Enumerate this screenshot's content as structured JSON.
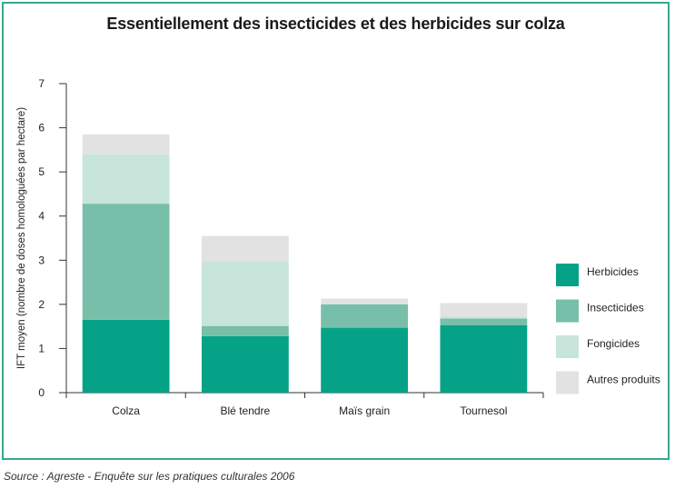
{
  "chart_data": {
    "type": "bar",
    "stacked": true,
    "title": "Essentiellement des insecticides et des herbicides sur colza",
    "xlabel": "",
    "ylabel": "IFT moyen (nombre de doses homologuées par hectare)",
    "ylim": [
      0,
      7
    ],
    "yticks": [
      "0",
      "1",
      "2",
      "3",
      "4",
      "5",
      "6",
      "7"
    ],
    "categories": [
      "Colza",
      "Blé tendre",
      "Maïs grain",
      "Tournesol"
    ],
    "series": [
      {
        "name": "Herbicides",
        "color": "#05a287",
        "values": [
          1.65,
          1.28,
          1.47,
          1.53
        ]
      },
      {
        "name": "Insecticides",
        "color": "#77bfa8",
        "values": [
          2.63,
          0.23,
          0.53,
          0.15
        ]
      },
      {
        "name": "Fongicides",
        "color": "#c7e5da",
        "values": [
          1.12,
          1.47,
          0.02,
          0.04
        ]
      },
      {
        "name": "Autres produits",
        "color": "#e2e2e3",
        "values": [
          0.45,
          0.57,
          0.11,
          0.31
        ]
      }
    ],
    "legend_position": "right",
    "grid": false
  },
  "source": "Source : Agreste - Enquête sur les pratiques culturales 2006"
}
